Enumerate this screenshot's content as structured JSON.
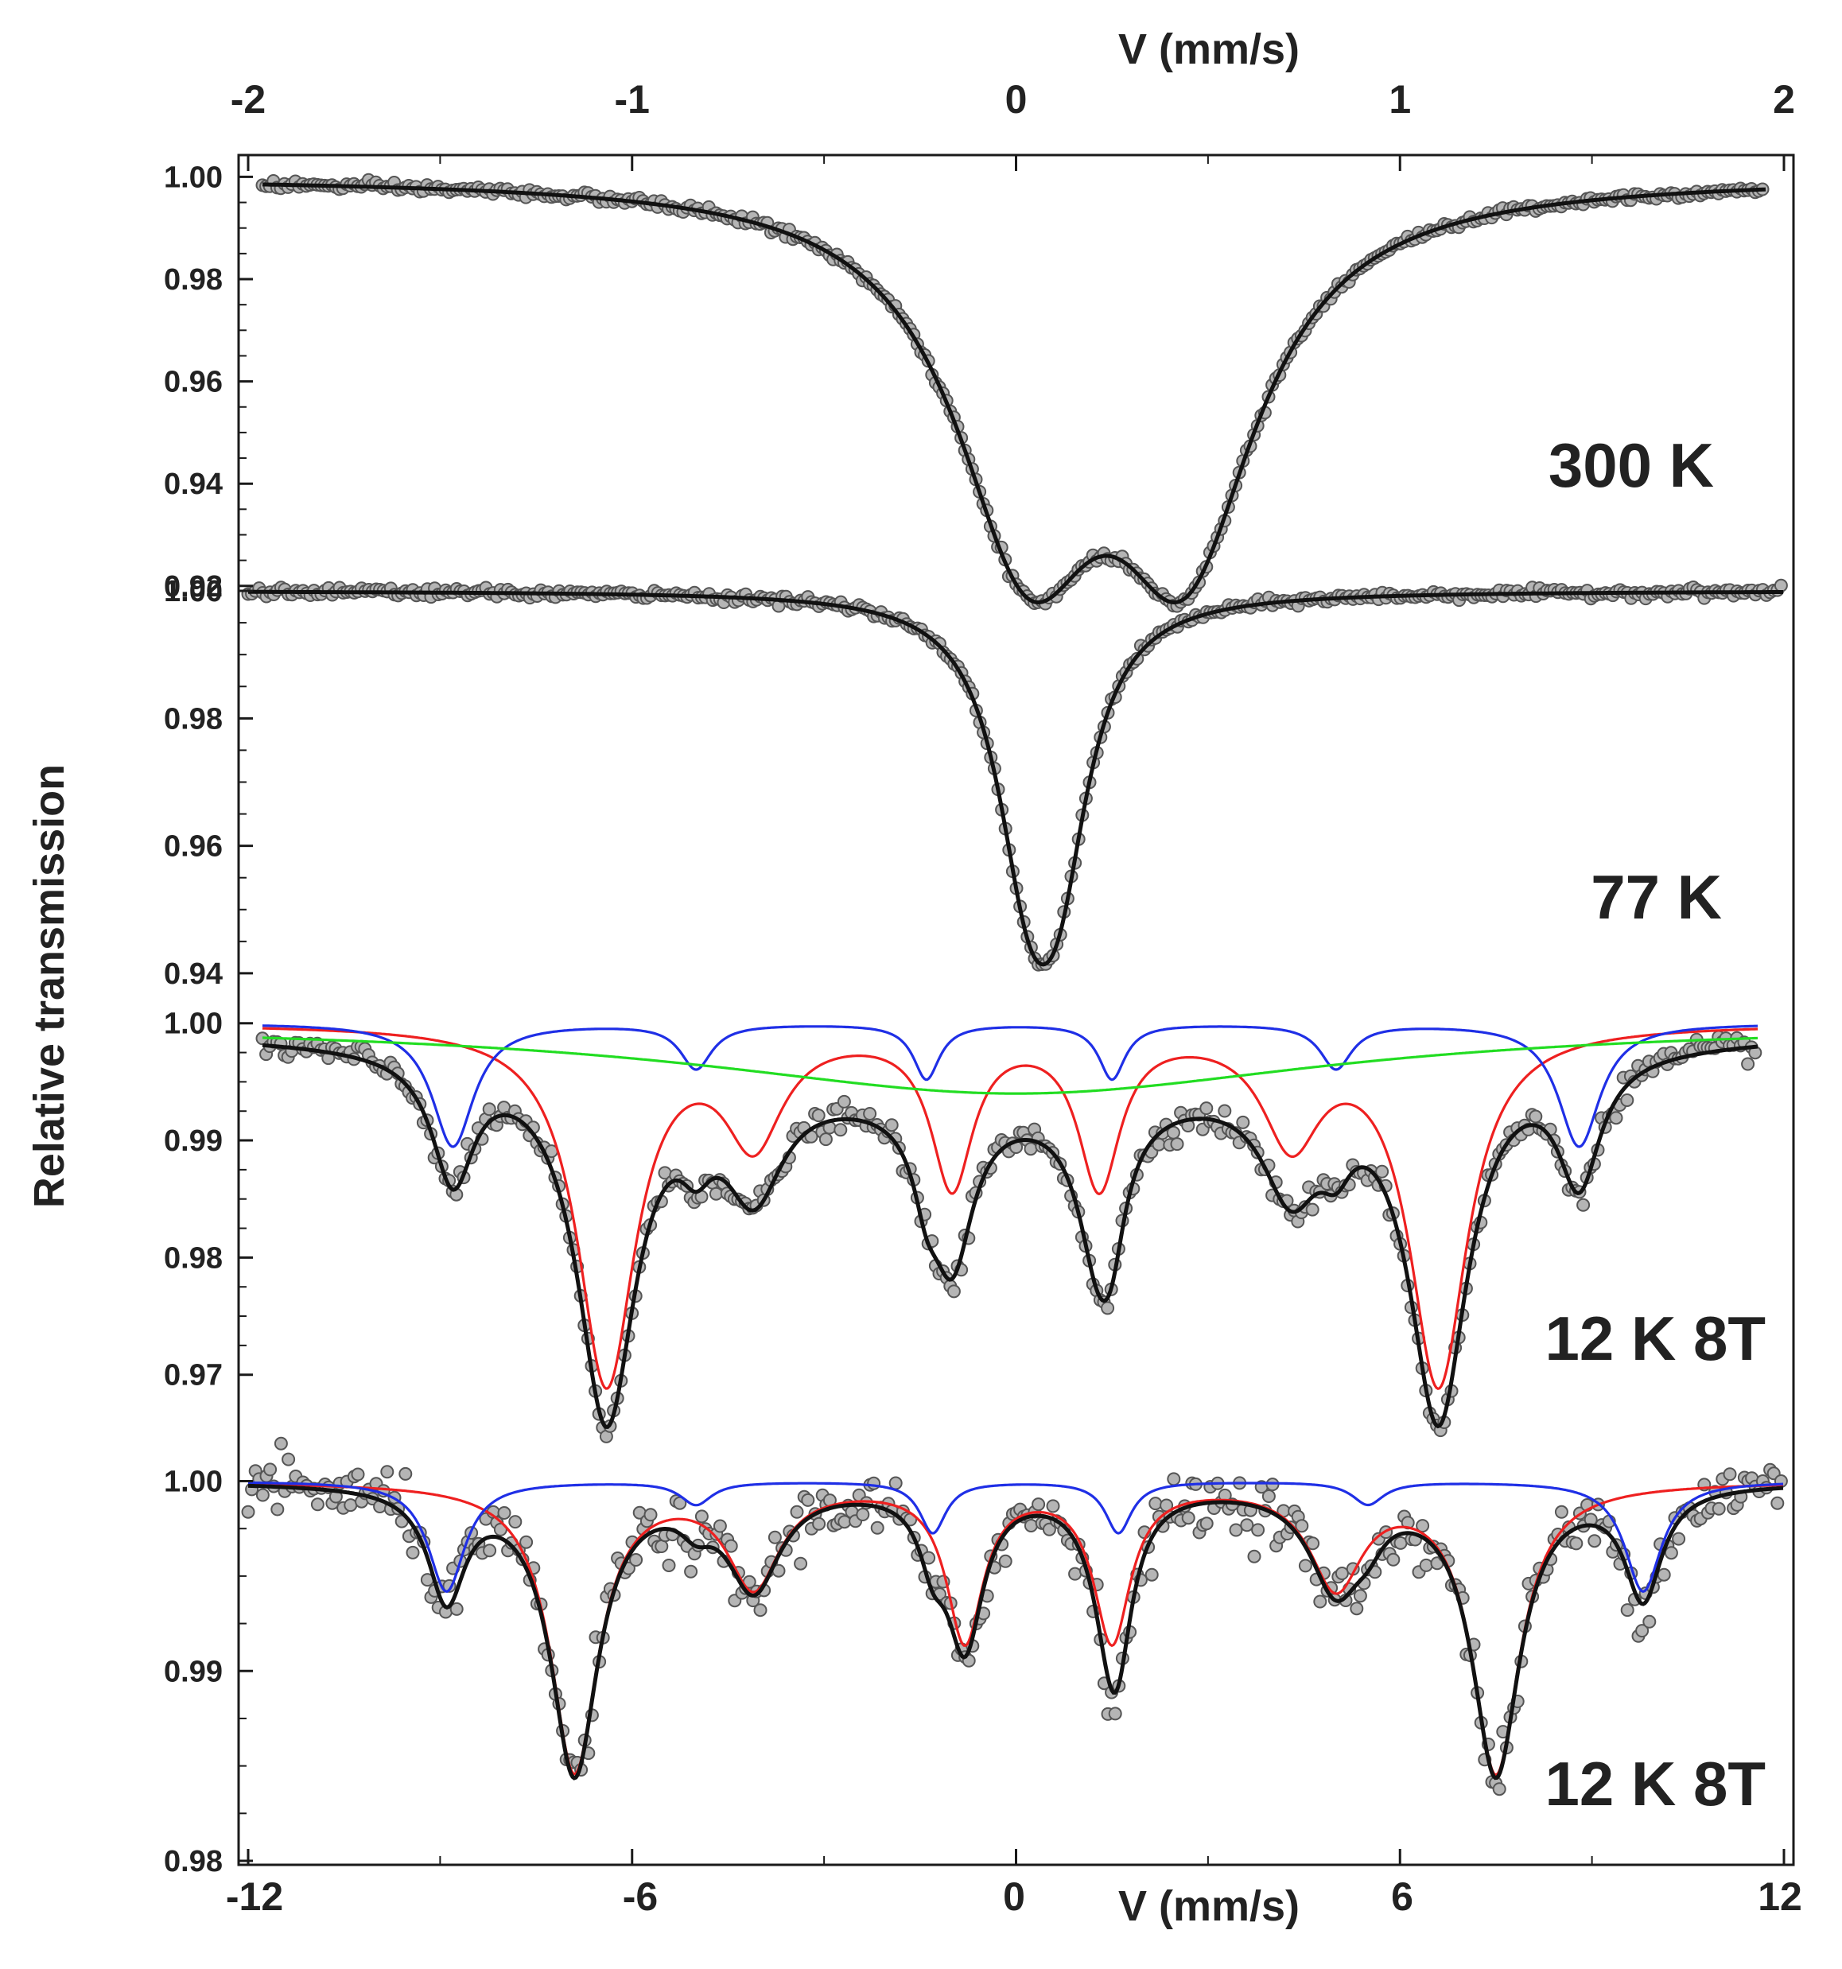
{
  "figure": {
    "ylabel": "Relative transmission",
    "top_axis": {
      "label": "V (mm/s)",
      "range": [
        -2,
        2
      ],
      "ticks": [
        "-2",
        "-1",
        "0",
        "1",
        "2"
      ]
    },
    "bottom_axis": {
      "label": "V (mm/s)",
      "range": [
        -12,
        12
      ],
      "ticks": [
        "-12",
        "-6",
        "0",
        "6",
        "12"
      ]
    }
  },
  "colors": {
    "data": "#b5b5b5",
    "fit_total": "#111111",
    "red": "#ee2020",
    "blue": "#1f2fe6",
    "green": "#22dd22"
  },
  "chart_data": [
    {
      "type": "scatter",
      "label": "300 K",
      "x_axis": "top",
      "xlim": [
        -1.95,
        1.95
      ],
      "ylim": [
        0.9195,
        1.0038
      ],
      "yticks": [
        "1.00",
        "0.98",
        "0.96",
        "0.94",
        "0.92"
      ],
      "ytick_values": [
        1.0,
        0.98,
        0.96,
        0.94,
        0.92
      ],
      "baseline": 1.0,
      "noise": 0.00045,
      "series": [
        {
          "name": "total",
          "color": "fit_total",
          "lines": [
            {
              "center": 0.03,
              "depth": 0.0665,
              "hwhm": 0.23
            },
            {
              "center": 0.44,
              "depth": 0.0665,
              "hwhm": 0.23
            }
          ]
        }
      ]
    },
    {
      "type": "scatter",
      "label": "77 K",
      "x_axis": "top",
      "xlim": [
        -1.95,
        1.95
      ],
      "ylim": [
        0.9355,
        1.001
      ],
      "yticks": [
        "1.00",
        "0.98",
        "0.96",
        "0.94"
      ],
      "ytick_values": [
        1.0,
        0.98,
        0.96,
        0.94
      ],
      "baseline": 1.0,
      "noise": 0.00035,
      "series": [
        {
          "name": "total",
          "color": "fit_total",
          "lines": [
            {
              "center": 0.03,
              "depth": 0.034,
              "hwhm": 0.1
            },
            {
              "center": 0.11,
              "depth": 0.034,
              "hwhm": 0.1
            }
          ]
        }
      ]
    },
    {
      "type": "scatter",
      "label": "12 K 8T",
      "x_axis": "bottom",
      "xlim": [
        -12,
        12
      ],
      "ylim": [
        0.9655,
        1.001
      ],
      "yticks": [
        "1.00",
        "0.99",
        "0.98",
        "0.97"
      ],
      "ytick_values": [
        1.0,
        0.99,
        0.98,
        0.97
      ],
      "baseline": 1.0,
      "noise": 0.0006,
      "series": [
        {
          "name": "red",
          "color": "red",
          "lines": [
            {
              "center": -6.4,
              "depth": 0.0305,
              "hwhm": 0.55
            },
            {
              "center": -4.1,
              "depth": 0.0093,
              "hwhm": 0.55
            },
            {
              "center": -1.0,
              "depth": 0.0133,
              "hwhm": 0.4
            },
            {
              "center": 1.3,
              "depth": 0.0133,
              "hwhm": 0.4
            },
            {
              "center": 4.3,
              "depth": 0.0093,
              "hwhm": 0.55
            },
            {
              "center": 6.6,
              "depth": 0.0305,
              "hwhm": 0.55
            }
          ]
        },
        {
          "name": "blue",
          "color": "blue",
          "lines": [
            {
              "center": -8.8,
              "depth": 0.0105,
              "hwhm": 0.4
            },
            {
              "center": -5.0,
              "depth": 0.0038,
              "hwhm": 0.3
            },
            {
              "center": -1.4,
              "depth": 0.0047,
              "hwhm": 0.25
            },
            {
              "center": 1.5,
              "depth": 0.0047,
              "hwhm": 0.25
            },
            {
              "center": 5.0,
              "depth": 0.0038,
              "hwhm": 0.3
            },
            {
              "center": 8.8,
              "depth": 0.0105,
              "hwhm": 0.4
            }
          ]
        },
        {
          "name": "green",
          "color": "green",
          "lines": [
            {
              "center": 0.0,
              "depth": 0.006,
              "hwhm": 6.0
            }
          ]
        }
      ]
    },
    {
      "type": "scatter",
      "label": "12 K 8T",
      "x_axis": "bottom",
      "xlim": [
        -12,
        12
      ],
      "ylim": [
        0.98,
        1.0022
      ],
      "yticks": [
        "1.00",
        "0.99",
        "0.98"
      ],
      "ytick_values": [
        1.0,
        0.99,
        0.98
      ],
      "baseline": 1.0,
      "noise": 0.0008,
      "series": [
        {
          "name": "red",
          "color": "red",
          "lines": [
            {
              "center": -6.9,
              "depth": 0.0152,
              "hwhm": 0.45
            },
            {
              "center": -4.1,
              "depth": 0.0053,
              "hwhm": 0.5
            },
            {
              "center": -0.8,
              "depth": 0.0082,
              "hwhm": 0.35
            },
            {
              "center": 1.5,
              "depth": 0.0082,
              "hwhm": 0.35
            },
            {
              "center": 5.0,
              "depth": 0.0053,
              "hwhm": 0.5
            },
            {
              "center": 7.5,
              "depth": 0.0152,
              "hwhm": 0.45
            }
          ]
        },
        {
          "name": "blue",
          "color": "blue",
          "lines": [
            {
              "center": -8.9,
              "depth": 0.0058,
              "hwhm": 0.35
            },
            {
              "center": -5.0,
              "depth": 0.0012,
              "hwhm": 0.3
            },
            {
              "center": -1.3,
              "depth": 0.0027,
              "hwhm": 0.25
            },
            {
              "center": 1.6,
              "depth": 0.0027,
              "hwhm": 0.25
            },
            {
              "center": 5.5,
              "depth": 0.0012,
              "hwhm": 0.3
            },
            {
              "center": 9.8,
              "depth": 0.0058,
              "hwhm": 0.35
            }
          ]
        }
      ]
    }
  ]
}
